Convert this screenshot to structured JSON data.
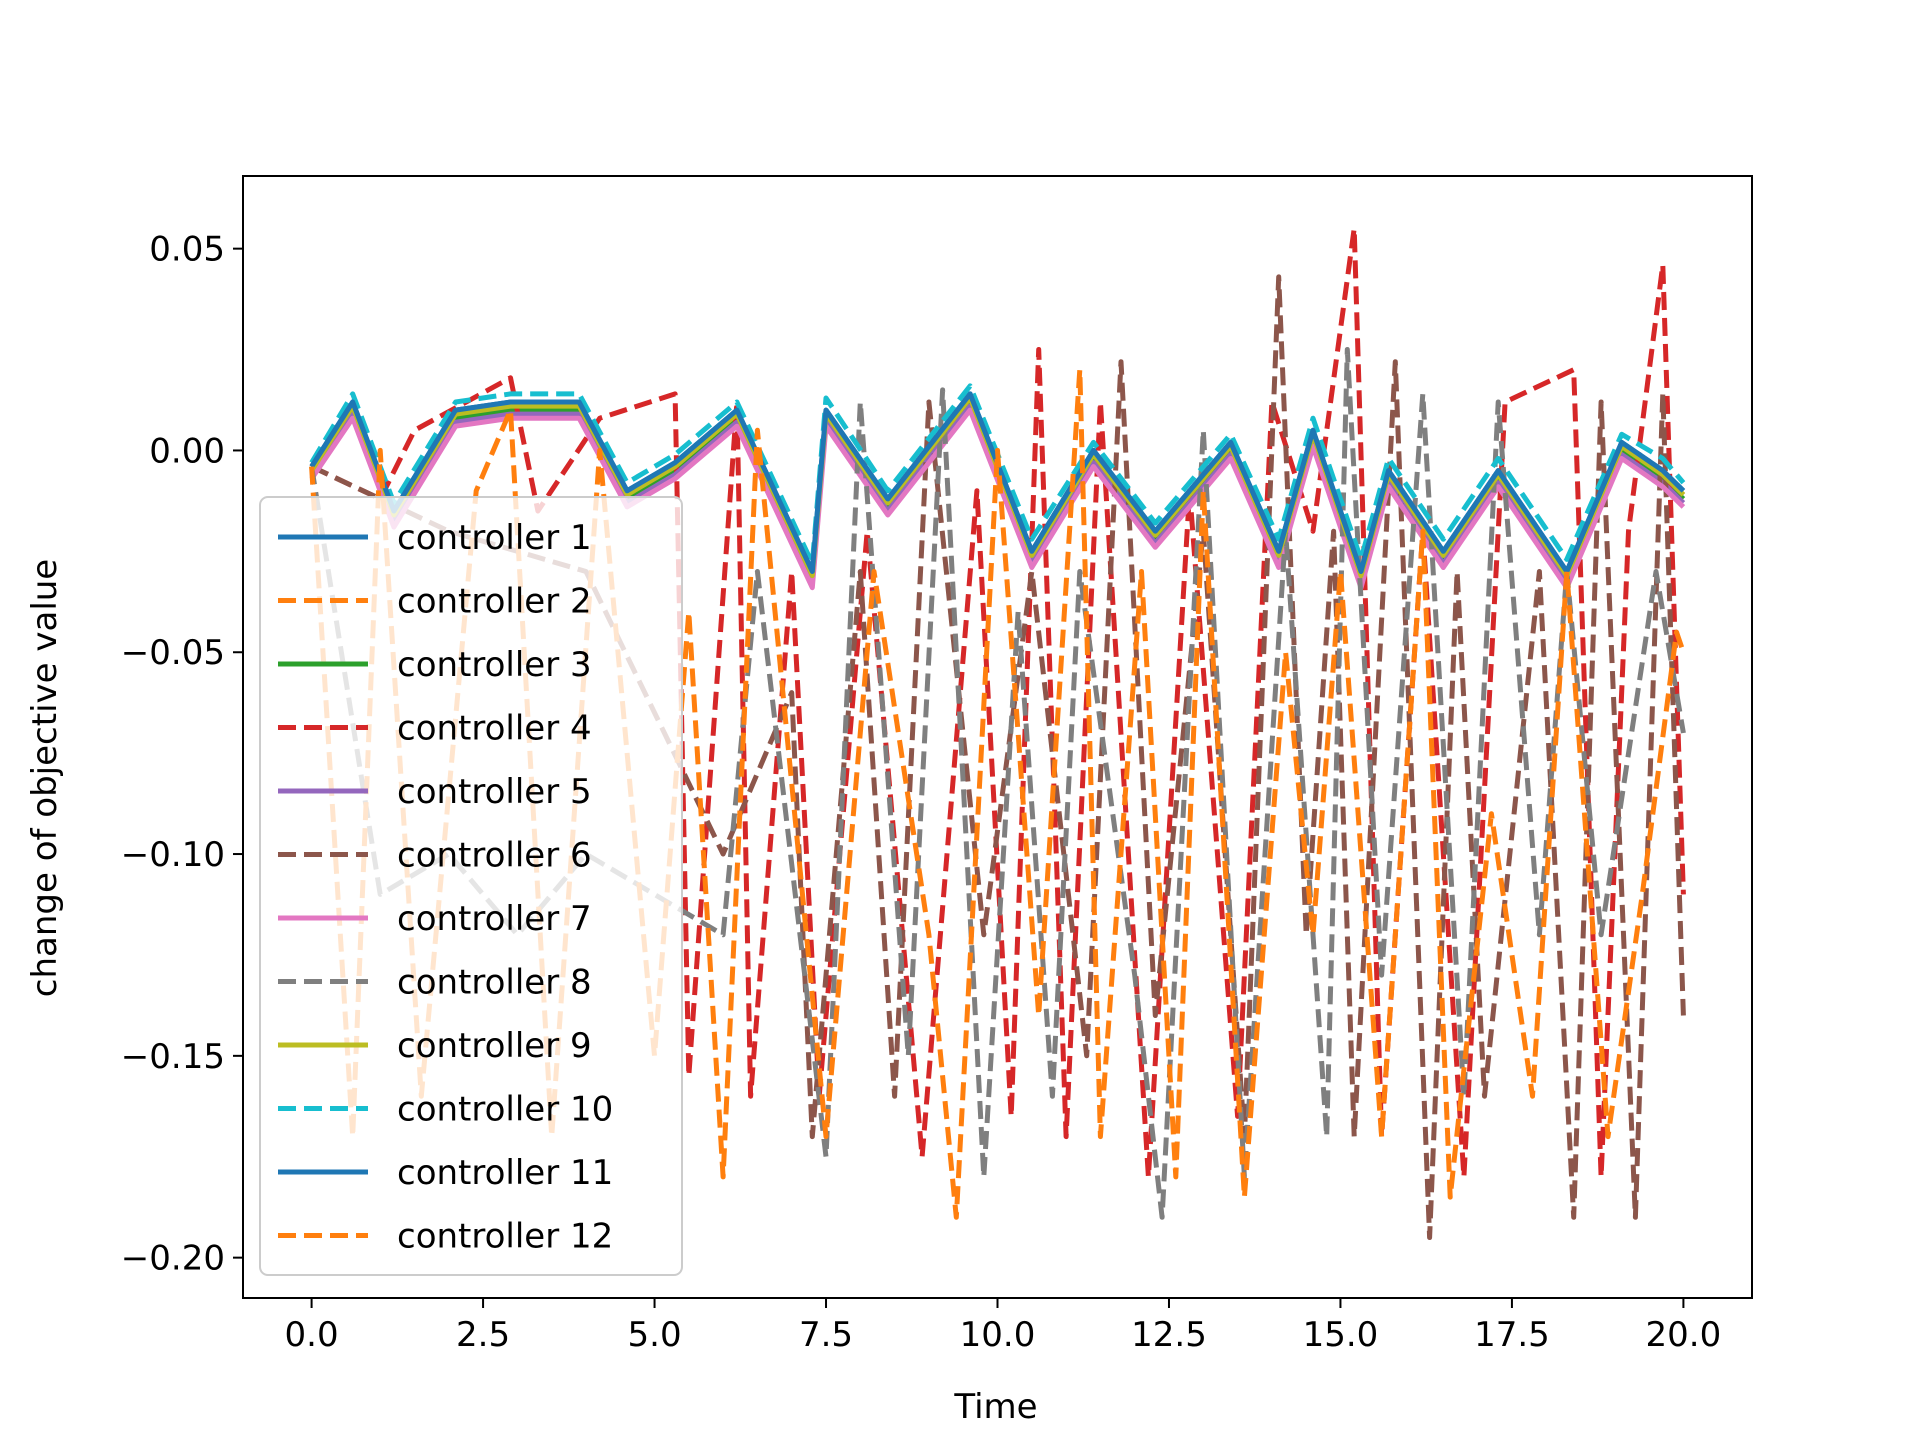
{
  "chart_data": {
    "type": "line",
    "title": "",
    "xlabel": "Time",
    "ylabel": "change of objective value",
    "xlim": [
      -1.0,
      21.0
    ],
    "ylim": [
      -0.21,
      0.068
    ],
    "xticks": [
      0.0,
      2.5,
      5.0,
      7.5,
      10.0,
      12.5,
      15.0,
      17.5,
      20.0
    ],
    "xtick_labels": [
      "0.0",
      "2.5",
      "5.0",
      "7.5",
      "10.0",
      "12.5",
      "15.0",
      "17.5",
      "20.0"
    ],
    "yticks": [
      0.05,
      0.0,
      -0.05,
      -0.1,
      -0.15,
      -0.2
    ],
    "ytick_labels": [
      "0.05",
      "0.00",
      "−0.05",
      "−0.10",
      "−0.15",
      "−0.20"
    ],
    "grid": false,
    "legend": "lower-left",
    "series": [
      {
        "name": "controller 1",
        "color": "#1f77b4",
        "style": "solid",
        "x": [
          0.0,
          0.6,
          1.2,
          2.1,
          2.9,
          3.9,
          4.6,
          5.3,
          6.2,
          7.3,
          7.5,
          8.4,
          9.6,
          10.5,
          11.4,
          12.3,
          13.4,
          14.1,
          14.6,
          15.3,
          15.7,
          16.5,
          17.3,
          18.3,
          19.1,
          19.7,
          20.0
        ],
        "y": [
          -0.004,
          0.012,
          -0.015,
          0.01,
          0.012,
          0.012,
          -0.01,
          -0.003,
          0.01,
          -0.03,
          0.01,
          -0.012,
          0.014,
          -0.025,
          0.0,
          -0.02,
          0.002,
          -0.025,
          0.005,
          -0.03,
          -0.005,
          -0.025,
          -0.005,
          -0.03,
          0.002,
          -0.005,
          -0.01
        ]
      },
      {
        "name": "controller 2",
        "color": "#ff7f0e",
        "style": "dashed",
        "x": [
          0.0,
          0.6,
          1.2,
          2.1,
          2.9,
          3.9,
          4.6,
          5.3,
          6.2,
          7.3,
          7.5,
          8.4,
          9.6,
          10.5,
          11.4,
          12.3,
          13.4,
          14.1,
          14.6,
          15.3,
          15.7,
          16.5,
          17.3,
          18.3,
          19.1,
          19.7,
          20.0
        ],
        "y": [
          -0.004,
          0.011,
          -0.016,
          0.009,
          0.011,
          0.011,
          -0.011,
          -0.004,
          0.009,
          -0.031,
          0.009,
          -0.013,
          0.013,
          -0.026,
          -0.001,
          -0.021,
          0.001,
          -0.026,
          0.004,
          -0.031,
          -0.006,
          -0.026,
          -0.006,
          -0.031,
          0.001,
          -0.006,
          -0.011
        ]
      },
      {
        "name": "controller 3",
        "color": "#2ca02c",
        "style": "solid",
        "x": [
          0.0,
          0.6,
          1.2,
          2.1,
          2.9,
          3.9,
          4.6,
          5.3,
          6.2,
          7.3,
          7.5,
          8.4,
          9.6,
          10.5,
          11.4,
          12.3,
          13.4,
          14.1,
          14.6,
          15.3,
          15.7,
          16.5,
          17.3,
          18.3,
          19.1,
          19.7,
          20.0
        ],
        "y": [
          -0.005,
          0.01,
          -0.017,
          0.008,
          0.01,
          0.01,
          -0.012,
          -0.005,
          0.008,
          -0.032,
          0.008,
          -0.014,
          0.012,
          -0.027,
          -0.002,
          -0.022,
          0.0,
          -0.027,
          0.003,
          -0.032,
          -0.007,
          -0.027,
          -0.007,
          -0.032,
          0.0,
          -0.007,
          -0.012
        ]
      },
      {
        "name": "controller 4",
        "color": "#d62728",
        "style": "dashed",
        "x": [
          0.0,
          1.0,
          1.5,
          2.9,
          3.3,
          4.2,
          5.3,
          5.5,
          6.2,
          6.4,
          7.0,
          7.4,
          8.1,
          8.9,
          9.7,
          10.2,
          10.6,
          11.0,
          11.5,
          12.2,
          12.8,
          13.5,
          14.0,
          14.6,
          15.2,
          15.6,
          16.2,
          16.8,
          17.4,
          18.4,
          18.8,
          19.2,
          19.7,
          20.0
        ],
        "y": [
          -0.004,
          -0.012,
          0.005,
          0.018,
          -0.015,
          0.008,
          0.014,
          -0.155,
          0.012,
          -0.16,
          -0.03,
          -0.16,
          -0.02,
          -0.175,
          -0.01,
          -0.165,
          0.025,
          -0.17,
          0.012,
          -0.18,
          -0.01,
          -0.165,
          0.012,
          -0.02,
          0.055,
          -0.17,
          -0.02,
          -0.18,
          0.012,
          0.02,
          -0.18,
          -0.02,
          0.046,
          -0.11
        ]
      },
      {
        "name": "controller 5",
        "color": "#9467bd",
        "style": "solid",
        "x": [
          0.0,
          0.6,
          1.2,
          2.1,
          2.9,
          3.9,
          4.6,
          5.3,
          6.2,
          7.3,
          7.5,
          8.4,
          9.6,
          10.5,
          11.4,
          12.3,
          13.4,
          14.1,
          14.6,
          15.3,
          15.7,
          16.5,
          17.3,
          18.3,
          19.1,
          19.7,
          20.0
        ],
        "y": [
          -0.006,
          0.009,
          -0.018,
          0.007,
          0.009,
          0.009,
          -0.013,
          -0.006,
          0.007,
          -0.033,
          0.007,
          -0.015,
          0.011,
          -0.028,
          -0.003,
          -0.023,
          -0.001,
          -0.028,
          0.002,
          -0.033,
          -0.008,
          -0.028,
          -0.008,
          -0.033,
          -0.001,
          -0.008,
          -0.013
        ]
      },
      {
        "name": "controller 6",
        "color": "#8c564b",
        "style": "dashed",
        "x": [
          0.0,
          2.0,
          4.0,
          6.0,
          7.0,
          7.3,
          8.0,
          8.5,
          9.0,
          9.8,
          10.5,
          11.3,
          11.8,
          12.3,
          13.0,
          13.6,
          14.1,
          14.5,
          14.9,
          15.2,
          15.8,
          16.3,
          16.7,
          17.1,
          17.9,
          18.4,
          18.8,
          19.3,
          19.7,
          20.0
        ],
        "y": [
          -0.004,
          -0.02,
          -0.03,
          -0.1,
          -0.06,
          -0.17,
          -0.03,
          -0.16,
          0.012,
          -0.12,
          -0.03,
          -0.15,
          0.022,
          -0.14,
          -0.02,
          -0.17,
          0.043,
          -0.12,
          -0.02,
          -0.17,
          0.022,
          -0.195,
          -0.03,
          -0.16,
          -0.03,
          -0.19,
          0.012,
          -0.19,
          0.014,
          -0.14
        ]
      },
      {
        "name": "controller 7",
        "color": "#e377c2",
        "style": "solid",
        "x": [
          0.0,
          0.6,
          1.2,
          2.1,
          2.9,
          3.9,
          4.6,
          5.3,
          6.2,
          7.3,
          7.5,
          8.4,
          9.6,
          10.5,
          11.4,
          12.3,
          13.4,
          14.1,
          14.6,
          15.3,
          15.7,
          16.5,
          17.3,
          18.3,
          19.1,
          19.7,
          20.0
        ],
        "y": [
          -0.007,
          0.008,
          -0.019,
          0.006,
          0.008,
          0.008,
          -0.014,
          -0.007,
          0.006,
          -0.034,
          0.006,
          -0.016,
          0.01,
          -0.029,
          -0.004,
          -0.024,
          -0.002,
          -0.029,
          0.001,
          -0.034,
          -0.009,
          -0.029,
          -0.009,
          -0.034,
          -0.002,
          -0.009,
          -0.014
        ]
      },
      {
        "name": "controller 8",
        "color": "#7f7f7f",
        "style": "dashed",
        "x": [
          0.0,
          1.0,
          2.0,
          3.0,
          4.0,
          5.0,
          6.0,
          6.5,
          7.5,
          8.0,
          8.7,
          9.2,
          9.8,
          10.3,
          10.8,
          11.2,
          12.0,
          12.4,
          13.0,
          13.6,
          14.2,
          14.8,
          15.1,
          15.6,
          16.2,
          16.8,
          17.3,
          17.9,
          18.3,
          18.8,
          19.6,
          20.0
        ],
        "y": [
          -0.004,
          -0.11,
          -0.1,
          -0.12,
          -0.1,
          -0.11,
          -0.12,
          -0.03,
          -0.175,
          0.012,
          -0.15,
          0.015,
          -0.18,
          -0.04,
          -0.16,
          -0.03,
          -0.13,
          -0.19,
          0.005,
          -0.18,
          -0.02,
          -0.17,
          0.025,
          -0.13,
          0.014,
          -0.16,
          0.012,
          -0.12,
          -0.03,
          -0.12,
          -0.03,
          -0.07
        ]
      },
      {
        "name": "controller 9",
        "color": "#bcbd22",
        "style": "solid",
        "x": [
          0.0,
          0.6,
          1.2,
          2.1,
          2.9,
          3.9,
          4.6,
          5.3,
          6.2,
          7.3,
          7.5,
          8.4,
          9.6,
          10.5,
          11.4,
          12.3,
          13.4,
          14.1,
          14.6,
          15.3,
          15.7,
          16.5,
          17.3,
          18.3,
          19.1,
          19.7,
          20.0
        ],
        "y": [
          -0.005,
          0.011,
          -0.016,
          0.009,
          0.011,
          0.011,
          -0.011,
          -0.004,
          0.009,
          -0.031,
          0.009,
          -0.013,
          0.013,
          -0.026,
          -0.001,
          -0.021,
          0.001,
          -0.026,
          0.004,
          -0.031,
          -0.006,
          -0.026,
          -0.006,
          -0.031,
          0.001,
          -0.006,
          -0.011
        ]
      },
      {
        "name": "controller 10",
        "color": "#17becf",
        "style": "dashed",
        "x": [
          0.0,
          0.6,
          1.2,
          2.1,
          2.9,
          3.9,
          4.6,
          5.3,
          6.2,
          7.3,
          7.5,
          8.4,
          9.6,
          10.5,
          11.4,
          12.3,
          13.4,
          14.1,
          14.6,
          15.3,
          15.7,
          16.5,
          17.3,
          18.3,
          19.1,
          19.7,
          20.0
        ],
        "y": [
          -0.003,
          0.014,
          -0.013,
          0.012,
          0.014,
          0.014,
          -0.008,
          -0.001,
          0.012,
          -0.028,
          0.013,
          -0.01,
          0.016,
          -0.022,
          0.002,
          -0.018,
          0.004,
          -0.022,
          0.008,
          -0.027,
          -0.002,
          -0.022,
          -0.002,
          -0.027,
          0.004,
          -0.002,
          -0.008
        ]
      },
      {
        "name": "controller 11",
        "color": "#1f77b4",
        "style": "solid",
        "x": [
          0.0,
          0.6,
          1.2,
          2.1,
          2.9,
          3.9,
          4.6,
          5.3,
          6.2,
          7.3,
          7.5,
          8.4,
          9.6,
          10.5,
          11.4,
          12.3,
          13.4,
          14.1,
          14.6,
          15.3,
          15.7,
          16.5,
          17.3,
          18.3,
          19.1,
          19.7,
          20.0
        ],
        "y": [
          -0.004,
          0.012,
          -0.015,
          0.01,
          0.012,
          0.012,
          -0.01,
          -0.003,
          0.01,
          -0.03,
          0.01,
          -0.012,
          0.014,
          -0.025,
          0.0,
          -0.02,
          0.002,
          -0.025,
          0.005,
          -0.03,
          -0.005,
          -0.025,
          -0.005,
          -0.03,
          0.002,
          -0.005,
          -0.01
        ]
      },
      {
        "name": "controller 12",
        "color": "#ff7f0e",
        "style": "dashed",
        "x": [
          0.0,
          0.6,
          1.0,
          1.6,
          2.4,
          2.9,
          3.5,
          4.2,
          5.0,
          5.5,
          6.0,
          6.5,
          7.5,
          8.2,
          9.0,
          9.4,
          10.0,
          10.6,
          11.2,
          11.5,
          12.1,
          12.6,
          13.0,
          13.6,
          14.2,
          14.6,
          15.0,
          15.6,
          16.2,
          16.6,
          17.2,
          17.8,
          18.3,
          18.9,
          19.4,
          19.9,
          20.0
        ],
        "y": [
          -0.004,
          -0.17,
          0.0,
          -0.16,
          -0.01,
          0.01,
          -0.17,
          0.0,
          -0.15,
          -0.04,
          -0.18,
          0.005,
          -0.17,
          -0.03,
          -0.12,
          -0.19,
          0.0,
          -0.14,
          0.02,
          -0.17,
          -0.03,
          -0.18,
          -0.01,
          -0.185,
          -0.05,
          -0.12,
          -0.03,
          -0.17,
          -0.02,
          -0.185,
          -0.09,
          -0.16,
          -0.03,
          -0.17,
          -0.11,
          -0.045,
          -0.05
        ]
      }
    ]
  }
}
